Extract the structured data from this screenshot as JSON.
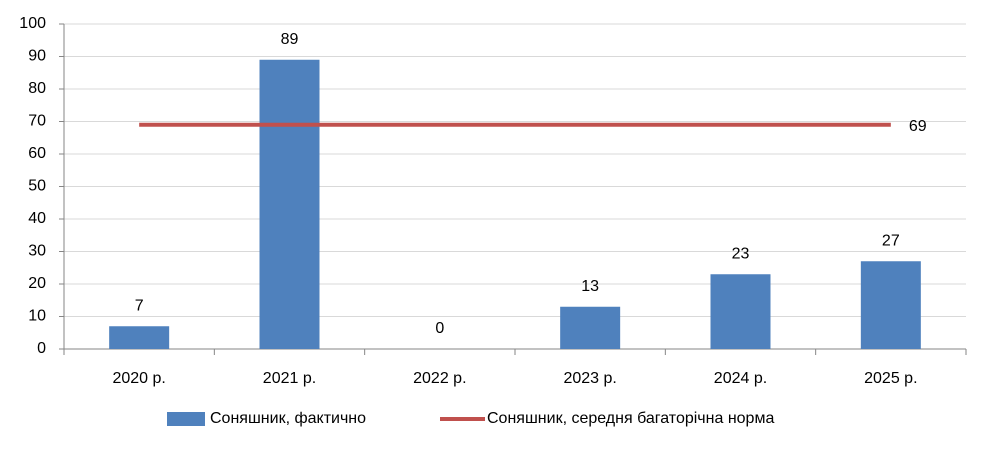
{
  "chart_data": {
    "type": "bar",
    "categories": [
      "2020 р.",
      "2021 р.",
      "2022 р.",
      "2023 р.",
      "2024 р.",
      "2025 р."
    ],
    "series": [
      {
        "name": "Соняшник, фактично",
        "type": "bar",
        "color": "#4f81bd",
        "values": [
          7,
          89,
          0,
          13,
          23,
          27
        ]
      },
      {
        "name": "Соняшник, середня багаторічна норма",
        "type": "line",
        "color": "#c0504d",
        "values": [
          69,
          69,
          69,
          69,
          69,
          69
        ]
      }
    ],
    "ylim": [
      0,
      100
    ],
    "yticks": [
      0,
      10,
      20,
      30,
      40,
      50,
      60,
      70,
      80,
      90,
      100
    ],
    "grid": true
  }
}
